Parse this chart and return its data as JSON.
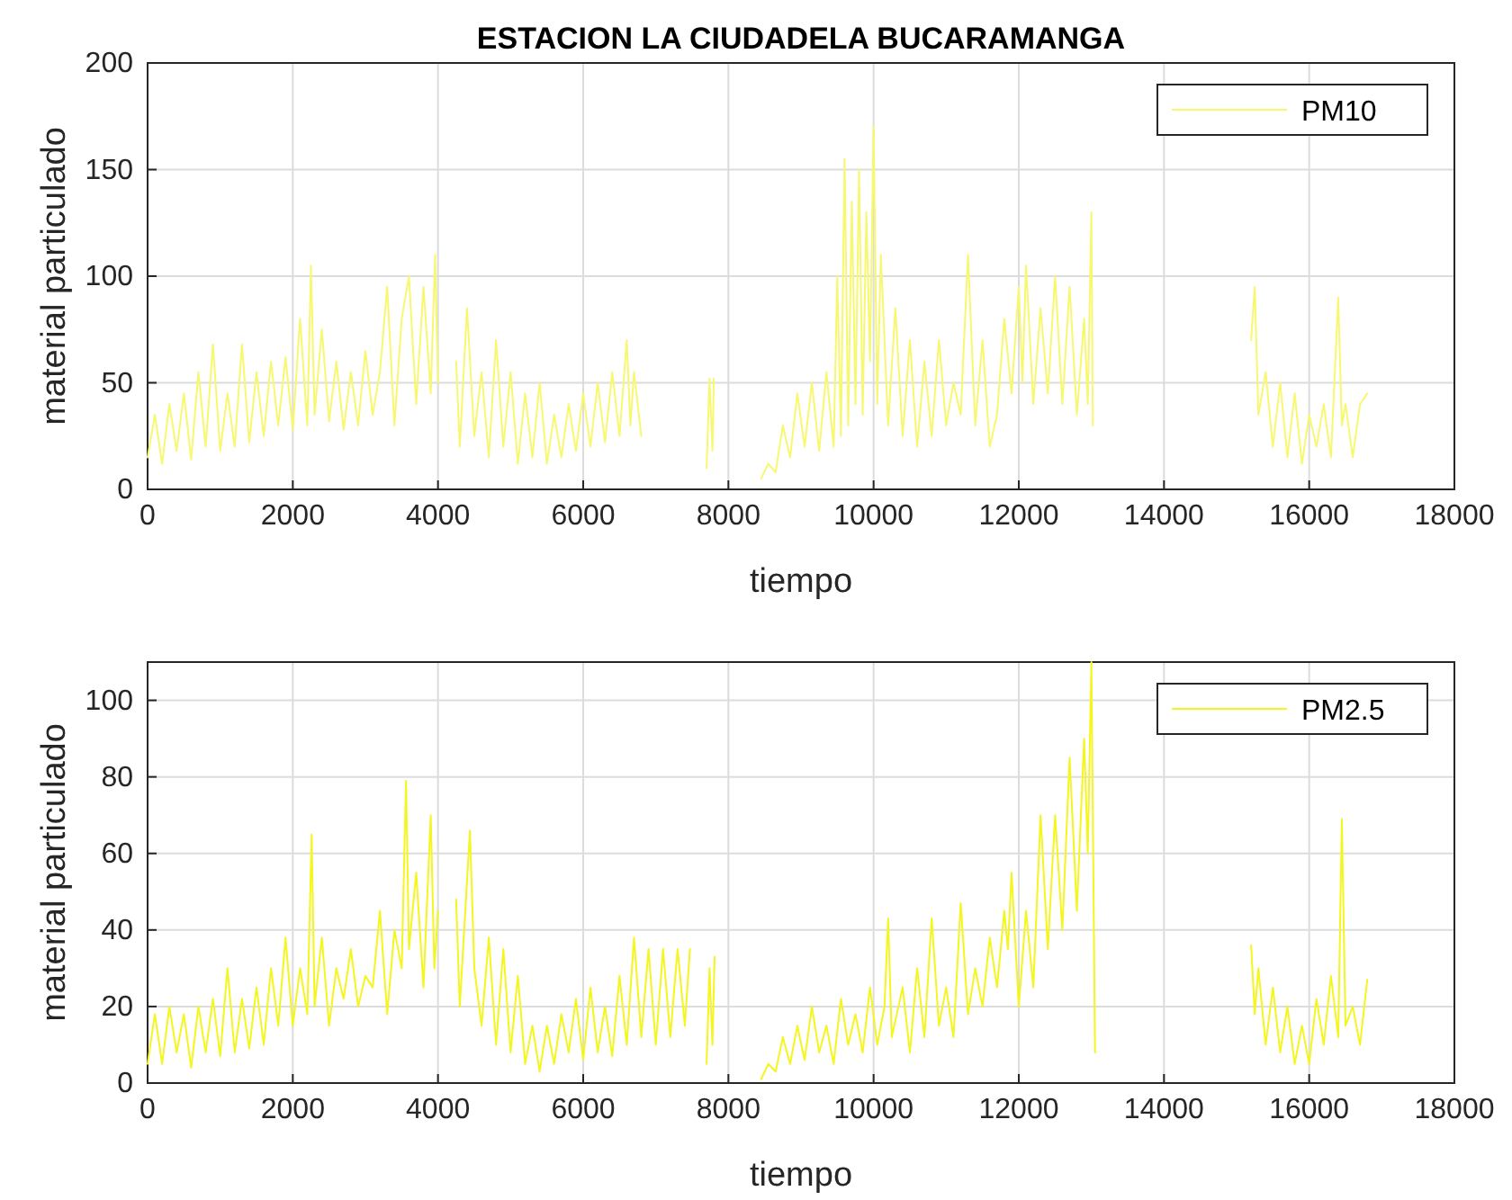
{
  "chart_data": [
    {
      "type": "line",
      "title": "ESTACION LA CIUDADELA BUCARAMANGA",
      "xlabel": "tiempo",
      "ylabel": "material particulado",
      "xlim": [
        0,
        18000
      ],
      "xticks": [
        0,
        2000,
        4000,
        6000,
        8000,
        10000,
        12000,
        14000,
        16000,
        18000
      ],
      "ylim": [
        0,
        200
      ],
      "yticks": [
        0,
        50,
        100,
        150,
        200
      ],
      "grid": true,
      "legend": "top right",
      "series": [
        {
          "name": "PM10",
          "color": "#f8f870",
          "x": [
            0,
            100,
            200,
            300,
            400,
            500,
            600,
            700,
            800,
            900,
            1000,
            1100,
            1200,
            1300,
            1400,
            1500,
            1600,
            1700,
            1800,
            1900,
            2000,
            2100,
            2200,
            2250,
            2300,
            2400,
            2500,
            2600,
            2700,
            2800,
            2900,
            3000,
            3100,
            3200,
            3300,
            3400,
            3500,
            3600,
            3700,
            3800,
            3900,
            3960,
            4000,
            4050,
            4250,
            4300,
            4400,
            4500,
            4600,
            4700,
            4800,
            4900,
            5000,
            5100,
            5200,
            5300,
            5400,
            5500,
            5600,
            5700,
            5800,
            5900,
            6000,
            6100,
            6200,
            6300,
            6400,
            6500,
            6600,
            6650,
            6700,
            6800,
            6900,
            7700,
            7740,
            7780,
            7800,
            7900,
            8450,
            8550,
            8650,
            8750,
            8850,
            8950,
            9050,
            9150,
            9250,
            9350,
            9450,
            9500,
            9550,
            9600,
            9650,
            9700,
            9750,
            9800,
            9850,
            9900,
            9950,
            10000,
            10050,
            10100,
            10200,
            10300,
            10400,
            10500,
            10600,
            10700,
            10800,
            10900,
            11000,
            11100,
            11200,
            11300,
            11400,
            11500,
            11600,
            11700,
            11800,
            11900,
            12000,
            12050,
            12100,
            12200,
            12300,
            12400,
            12500,
            12600,
            12700,
            12800,
            12900,
            12950,
            13000,
            13020,
            13100,
            15200,
            15250,
            15300,
            15400,
            15500,
            15600,
            15700,
            15800,
            15900,
            16000,
            16100,
            16200,
            16300,
            16400,
            16450,
            16500,
            16600,
            16700,
            16800
          ],
          "values": [
            15,
            35,
            12,
            40,
            18,
            45,
            14,
            55,
            20,
            68,
            18,
            45,
            20,
            68,
            22,
            55,
            25,
            60,
            30,
            62,
            28,
            80,
            30,
            105,
            35,
            75,
            32,
            60,
            28,
            55,
            30,
            65,
            35,
            55,
            95,
            30,
            80,
            100,
            40,
            95,
            45,
            110,
            50,
            null,
            60,
            20,
            85,
            25,
            55,
            15,
            70,
            20,
            55,
            12,
            45,
            15,
            50,
            12,
            35,
            15,
            40,
            18,
            45,
            20,
            50,
            22,
            55,
            25,
            70,
            30,
            55,
            25,
            null,
            10,
            52,
            18,
            52,
            null,
            5,
            12,
            8,
            30,
            15,
            45,
            20,
            50,
            18,
            55,
            20,
            100,
            25,
            155,
            30,
            135,
            40,
            150,
            35,
            130,
            60,
            170,
            40,
            110,
            30,
            85,
            25,
            70,
            20,
            60,
            25,
            70,
            30,
            50,
            35,
            110,
            30,
            70,
            20,
            35,
            80,
            45,
            95,
            50,
            105,
            40,
            85,
            45,
            100,
            40,
            95,
            35,
            80,
            40,
            130,
            30,
            null,
            70,
            95,
            35,
            55,
            20,
            50,
            15,
            45,
            12,
            35,
            20,
            40,
            15,
            90,
            30,
            40,
            15,
            40,
            45
          ]
        }
      ]
    },
    {
      "type": "line",
      "xlabel": "tiempo",
      "ylabel": "material particulado",
      "xlim": [
        0,
        18000
      ],
      "xticks": [
        0,
        2000,
        4000,
        6000,
        8000,
        10000,
        12000,
        14000,
        16000,
        18000
      ],
      "ylim": [
        0,
        110
      ],
      "yticks": [
        0,
        20,
        40,
        60,
        80,
        100
      ],
      "grid": true,
      "legend": "top right",
      "series": [
        {
          "name": "PM2.5",
          "color": "#f5f520",
          "x": [
            0,
            100,
            200,
            300,
            400,
            500,
            600,
            700,
            800,
            900,
            1000,
            1100,
            1200,
            1300,
            1400,
            1500,
            1600,
            1700,
            1800,
            1900,
            2000,
            2100,
            2200,
            2260,
            2300,
            2400,
            2500,
            2600,
            2700,
            2800,
            2900,
            3000,
            3100,
            3200,
            3300,
            3400,
            3500,
            3560,
            3600,
            3700,
            3800,
            3900,
            3950,
            4000,
            4050,
            4250,
            4300,
            4440,
            4500,
            4600,
            4700,
            4800,
            4900,
            5000,
            5100,
            5200,
            5300,
            5400,
            5500,
            5600,
            5700,
            5800,
            5900,
            6000,
            6100,
            6200,
            6300,
            6400,
            6500,
            6600,
            6700,
            6800,
            6900,
            7000,
            7100,
            7200,
            7300,
            7400,
            7470,
            7550,
            7700,
            7740,
            7780,
            7810,
            7900,
            8450,
            8550,
            8650,
            8750,
            8850,
            8950,
            9050,
            9150,
            9250,
            9350,
            9450,
            9550,
            9650,
            9750,
            9850,
            9950,
            10050,
            10150,
            10200,
            10250,
            10400,
            10500,
            10600,
            10700,
            10800,
            10900,
            11000,
            11100,
            11200,
            11300,
            11400,
            11500,
            11600,
            11700,
            11800,
            11850,
            11900,
            12000,
            12100,
            12200,
            12300,
            12400,
            12500,
            12600,
            12700,
            12800,
            12900,
            12950,
            13000,
            13050,
            13100,
            15200,
            15250,
            15300,
            15400,
            15500,
            15600,
            15700,
            15800,
            15900,
            16000,
            16100,
            16200,
            16300,
            16400,
            16450,
            16500,
            16600,
            16700,
            16800
          ],
          "values": [
            5,
            18,
            5,
            20,
            8,
            18,
            4,
            20,
            8,
            22,
            7,
            30,
            8,
            22,
            9,
            25,
            10,
            30,
            15,
            38,
            15,
            30,
            18,
            65,
            20,
            38,
            15,
            30,
            22,
            35,
            20,
            28,
            25,
            45,
            18,
            40,
            30,
            79,
            35,
            55,
            25,
            70,
            30,
            45,
            null,
            48,
            20,
            66,
            30,
            15,
            38,
            10,
            35,
            8,
            28,
            5,
            15,
            3,
            15,
            5,
            18,
            8,
            22,
            6,
            25,
            8,
            20,
            7,
            28,
            10,
            38,
            12,
            35,
            10,
            35,
            12,
            35,
            15,
            35,
            null,
            5,
            30,
            10,
            33,
            null,
            1,
            5,
            3,
            12,
            5,
            15,
            6,
            20,
            8,
            15,
            5,
            22,
            10,
            18,
            8,
            25,
            10,
            20,
            43,
            12,
            25,
            8,
            30,
            12,
            43,
            15,
            25,
            12,
            47,
            18,
            30,
            20,
            38,
            25,
            45,
            35,
            55,
            20,
            45,
            25,
            70,
            35,
            70,
            40,
            85,
            45,
            90,
            60,
            110,
            8,
            null,
            36,
            18,
            30,
            10,
            25,
            8,
            20,
            5,
            15,
            5,
            22,
            10,
            28,
            12,
            69,
            15,
            20,
            10,
            27
          ]
        }
      ]
    }
  ]
}
